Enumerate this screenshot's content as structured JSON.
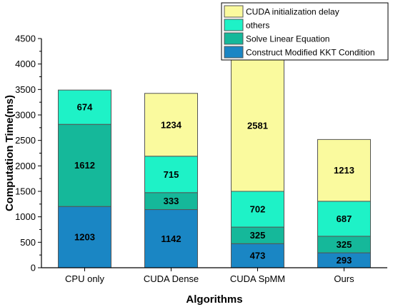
{
  "chart_data": {
    "type": "bar",
    "stacked": true,
    "xlabel": "Algorithms",
    "ylabel": "Computation Time(ms)",
    "ylim": [
      0,
      4500
    ],
    "yticks": [
      0,
      500,
      1000,
      1500,
      2000,
      2500,
      3000,
      3500,
      4000,
      4500
    ],
    "grid": false,
    "legend_position": "top-right",
    "categories": [
      "CPU only",
      "CUDA Dense",
      "CUDA SpMM",
      "Ours"
    ],
    "series": [
      {
        "name": "Construct Modified KKT Condition",
        "color": "#1a86c4",
        "values": [
          1203,
          1142,
          473,
          293
        ],
        "labels": [
          "1203",
          "1142",
          "473",
          "293"
        ]
      },
      {
        "name": "Solve Linear Equation",
        "color": "#15b89a",
        "values": [
          1612,
          333,
          325,
          325
        ],
        "labels": [
          "1612",
          "333",
          "325",
          "325"
        ]
      },
      {
        "name": "others",
        "color": "#1ef2c7",
        "values": [
          674,
          715,
          702,
          687
        ],
        "labels": [
          "674",
          "715",
          "702",
          "687"
        ]
      },
      {
        "name": "CUDA initialization delay",
        "color": "#fafa9e",
        "values": [
          0,
          1234,
          2581,
          1213
        ],
        "labels": [
          "",
          "1234",
          "2581",
          "1213"
        ]
      }
    ]
  }
}
